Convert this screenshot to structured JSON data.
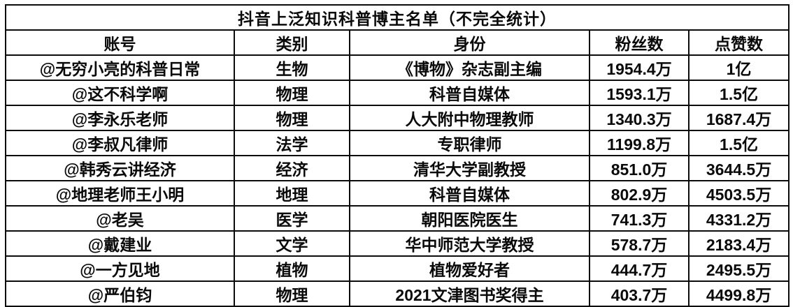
{
  "chart_data": {
    "type": "table",
    "title": "抖音上泛知识科普博主名单（不完全统计）",
    "columns": [
      "账号",
      "类别",
      "身份",
      "粉丝数",
      "点赞数"
    ],
    "rows": [
      [
        "@无穷小亮的科普日常",
        "生物",
        "《博物》杂志副主编",
        "1954.4万",
        "1亿"
      ],
      [
        "@这不科学啊",
        "物理",
        "科普自媒体",
        "1593.1万",
        "1.5亿"
      ],
      [
        "@李永乐老师",
        "物理",
        "人大附中物理教师",
        "1340.3万",
        "1687.4万"
      ],
      [
        "@李叔凡律师",
        "法学",
        "专职律师",
        "1199.8万",
        "1.5亿"
      ],
      [
        "@韩秀云讲经济",
        "经济",
        "清华大学副教授",
        "851.0万",
        "3644.5万"
      ],
      [
        "@地理老师王小明",
        "地理",
        "科普自媒体",
        "802.9万",
        "4503.5万"
      ],
      [
        "@老吴",
        "医学",
        "朝阳医院医生",
        "741.3万",
        "4331.2万"
      ],
      [
        "@戴建业",
        "文学",
        "华中师范大学教授",
        "578.7万",
        "2183.4万"
      ],
      [
        "@一方见地",
        "植物",
        "植物爱好者",
        "444.7万",
        "2495.5万"
      ],
      [
        "@严伯钧",
        "物理",
        "2021文津图书奖得主",
        "403.7万",
        "4499.8万"
      ]
    ]
  },
  "colors": {
    "border": "#0b0b0b",
    "text": "#0a0a0a",
    "background": "#ffffff"
  }
}
